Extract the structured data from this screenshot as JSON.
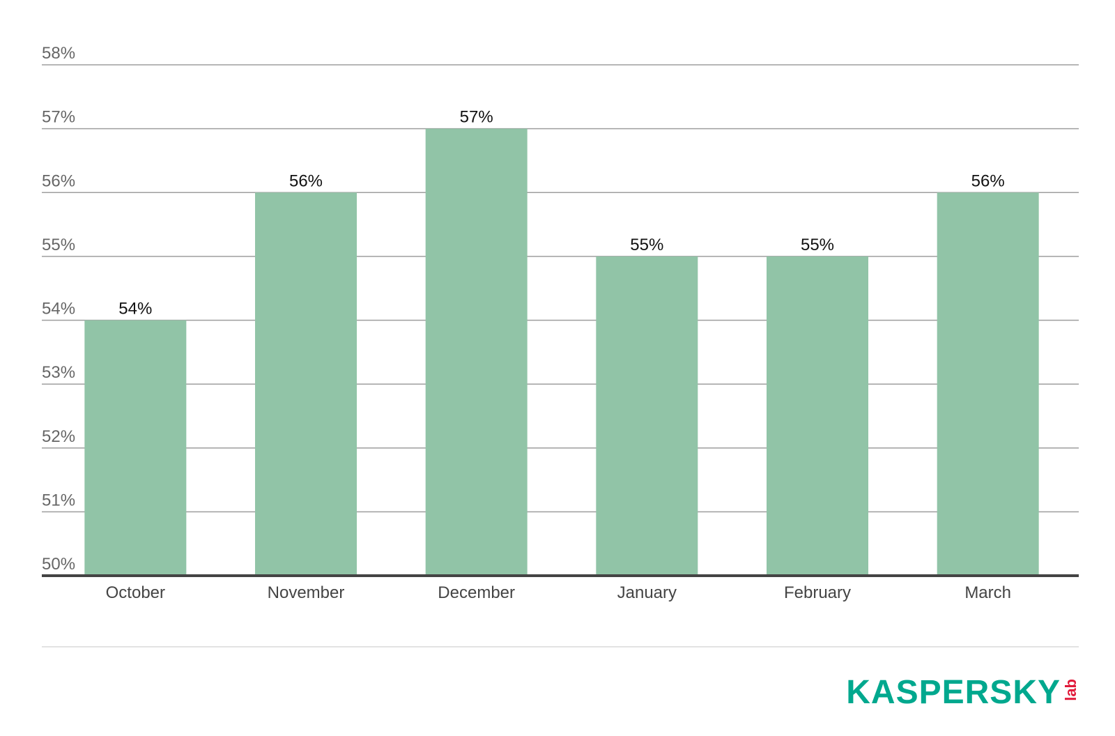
{
  "chart_data": {
    "type": "bar",
    "categories": [
      "October",
      "November",
      "December",
      "January",
      "February",
      "March"
    ],
    "values": [
      54,
      56,
      57,
      55,
      55,
      56
    ],
    "data_labels": [
      "54%",
      "56%",
      "57%",
      "55%",
      "55%",
      "56%"
    ],
    "y_ticks": [
      50,
      51,
      52,
      53,
      54,
      55,
      56,
      57,
      58
    ],
    "y_tick_labels": [
      "50%",
      "51%",
      "52%",
      "53%",
      "54%",
      "55%",
      "56%",
      "57%",
      "58%"
    ],
    "ylim": [
      50,
      58
    ],
    "grid": true,
    "title": "",
    "xlabel": "",
    "ylabel": "",
    "bar_color": "#91c4a7"
  },
  "brand": {
    "name": "KASPERSKY",
    "suffix": "lab",
    "color": "#00a88e",
    "accent": "#e11a3a"
  }
}
